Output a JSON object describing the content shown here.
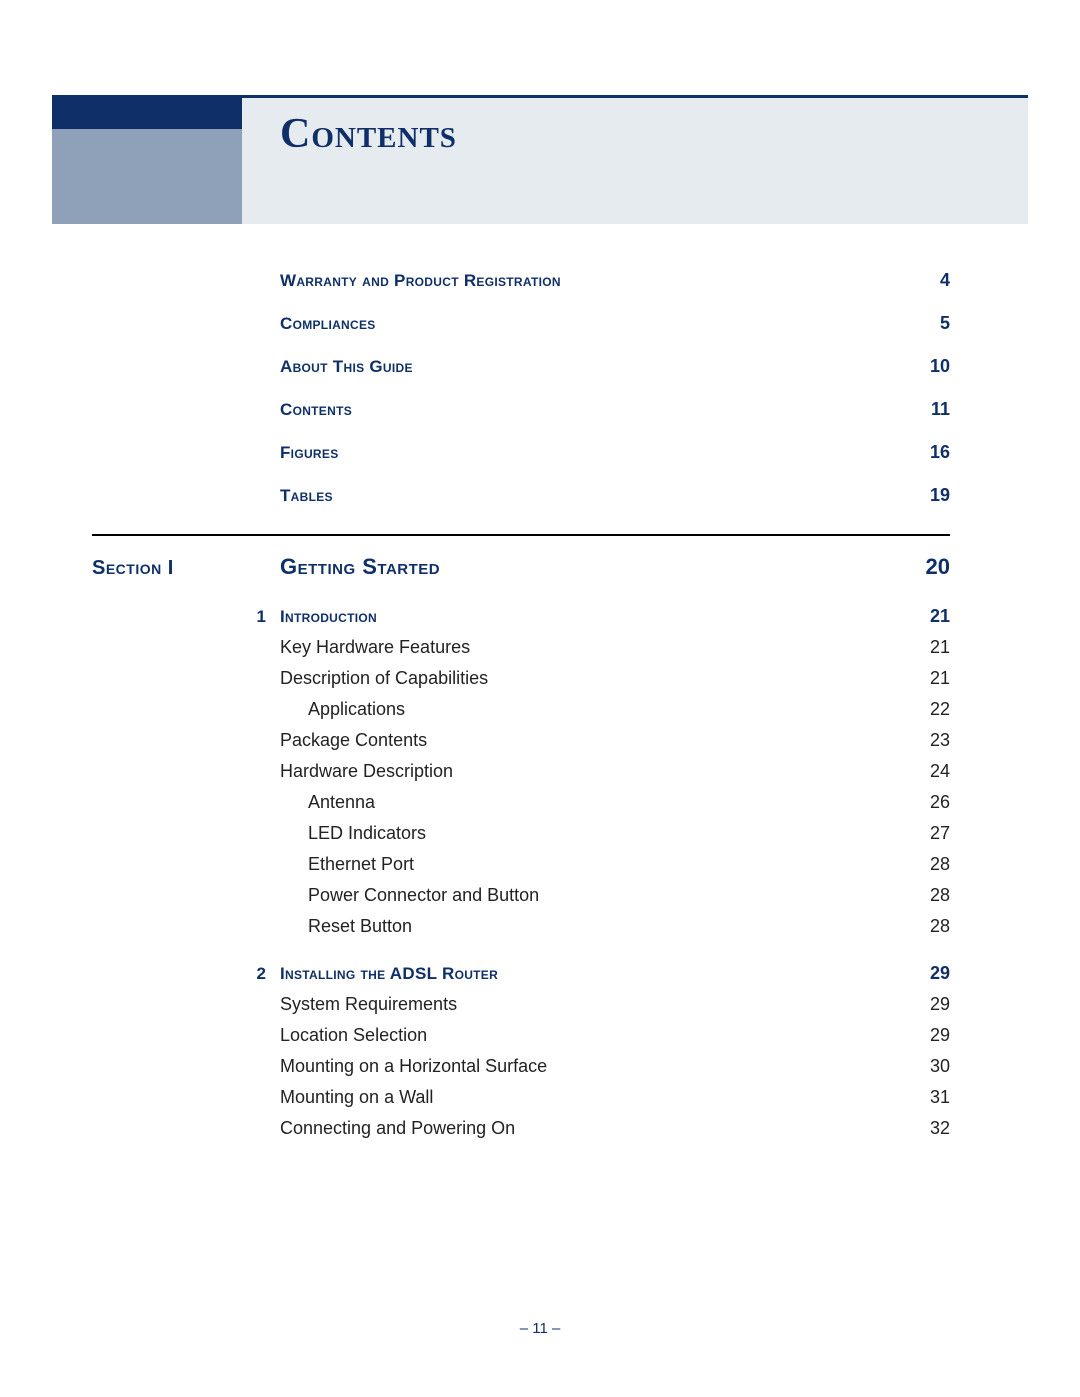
{
  "colors": {
    "brand_dark": "#0f2f68",
    "brand_mid": "#8ea1b9",
    "brand_light": "#e6ebef",
    "text": "#222222",
    "rule": "#000000",
    "page_bg": "#ffffff"
  },
  "typography": {
    "title_font": "Georgia",
    "body_font": "Verdana",
    "title_size_pt": 32,
    "section_size_pt": 16,
    "chapter_size_pt": 13,
    "body_size_pt": 14
  },
  "title": "Contents",
  "front_matter": [
    {
      "label": "Warranty and Product Registration",
      "page": "4"
    },
    {
      "label": "Compliances",
      "page": "5"
    },
    {
      "label": "About This Guide",
      "page": "10"
    },
    {
      "label": "Contents",
      "page": "11"
    },
    {
      "label": "Figures",
      "page": "16"
    },
    {
      "label": "Tables",
      "page": "19"
    }
  ],
  "section": {
    "marker": "Section I",
    "title": "Getting Started",
    "page": "20"
  },
  "chapters": [
    {
      "num": "1",
      "title": "Introduction",
      "page": "21",
      "entries": [
        {
          "label": "Key Hardware Features",
          "page": "21",
          "indent": 1
        },
        {
          "label": "Description of Capabilities",
          "page": "21",
          "indent": 1
        },
        {
          "label": "Applications",
          "page": "22",
          "indent": 2
        },
        {
          "label": "Package Contents",
          "page": "23",
          "indent": 1
        },
        {
          "label": "Hardware Description",
          "page": "24",
          "indent": 1
        },
        {
          "label": "Antenna",
          "page": "26",
          "indent": 2
        },
        {
          "label": "LED Indicators",
          "page": "27",
          "indent": 2
        },
        {
          "label": "Ethernet Port",
          "page": "28",
          "indent": 2
        },
        {
          "label": "Power Connector and Button",
          "page": "28",
          "indent": 2
        },
        {
          "label": "Reset Button",
          "page": "28",
          "indent": 2
        }
      ]
    },
    {
      "num": "2",
      "title": "Installing the ADSL Router",
      "page": "29",
      "entries": [
        {
          "label": "System Requirements",
          "page": "29",
          "indent": 1
        },
        {
          "label": "Location Selection",
          "page": "29",
          "indent": 1
        },
        {
          "label": "Mounting on a Horizontal Surface",
          "page": "30",
          "indent": 1
        },
        {
          "label": "Mounting on a Wall",
          "page": "31",
          "indent": 1
        },
        {
          "label": "Connecting and Powering On",
          "page": "32",
          "indent": 1
        }
      ]
    }
  ],
  "footer": "–  11  –"
}
